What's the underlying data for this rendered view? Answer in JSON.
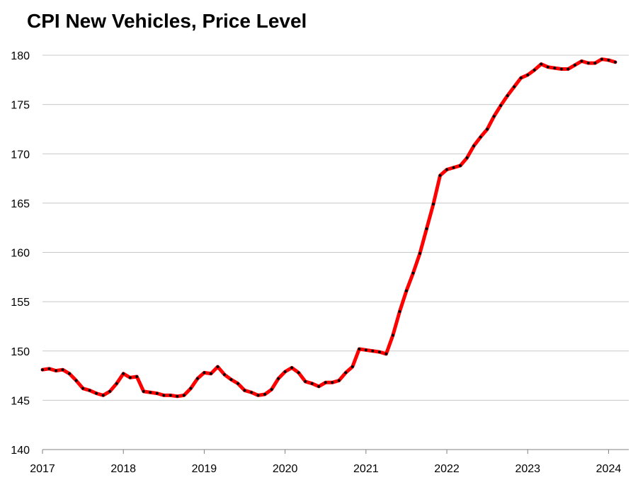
{
  "chart_data": {
    "type": "line",
    "title": "CPI New Vehicles, Price Level",
    "xlabel": "",
    "ylabel": "",
    "ylim": [
      140,
      180
    ],
    "xlim": [
      2017.0,
      2024.25
    ],
    "y_ticks": [
      140,
      145,
      150,
      155,
      160,
      165,
      170,
      175,
      180
    ],
    "x_ticks": [
      2017,
      2018,
      2019,
      2020,
      2021,
      2022,
      2023,
      2024
    ],
    "grid": "horizontal",
    "legend": "none",
    "series": [
      {
        "color": "#ff0000",
        "marker_color": "#000000",
        "x": [
          2017.0,
          2017.0833,
          2017.1667,
          2017.25,
          2017.3333,
          2017.4167,
          2017.5,
          2017.5833,
          2017.6667,
          2017.75,
          2017.8333,
          2017.9167,
          2018.0,
          2018.0833,
          2018.1667,
          2018.25,
          2018.3333,
          2018.4167,
          2018.5,
          2018.5833,
          2018.6667,
          2018.75,
          2018.8333,
          2018.9167,
          2019.0,
          2019.0833,
          2019.1667,
          2019.25,
          2019.3333,
          2019.4167,
          2019.5,
          2019.5833,
          2019.6667,
          2019.75,
          2019.8333,
          2019.9167,
          2020.0,
          2020.0833,
          2020.1667,
          2020.25,
          2020.3333,
          2020.4167,
          2020.5,
          2020.5833,
          2020.6667,
          2020.75,
          2020.8333,
          2020.9167,
          2021.0,
          2021.0833,
          2021.1667,
          2021.25,
          2021.3333,
          2021.4167,
          2021.5,
          2021.5833,
          2021.6667,
          2021.75,
          2021.8333,
          2021.9167,
          2022.0,
          2022.0833,
          2022.1667,
          2022.25,
          2022.3333,
          2022.4167,
          2022.5,
          2022.5833,
          2022.6667,
          2022.75,
          2022.8333,
          2022.9167,
          2023.0,
          2023.0833,
          2023.1667,
          2023.25,
          2023.3333,
          2023.4167,
          2023.5,
          2023.5833,
          2023.6667,
          2023.75,
          2023.8333,
          2023.9167,
          2024.0,
          2024.0833
        ],
        "values": [
          148.1,
          148.2,
          148.0,
          148.1,
          147.7,
          147.0,
          146.2,
          146.0,
          145.7,
          145.5,
          145.9,
          146.7,
          147.7,
          147.3,
          147.4,
          145.9,
          145.8,
          145.7,
          145.5,
          145.5,
          145.4,
          145.5,
          146.2,
          147.2,
          147.8,
          147.7,
          148.4,
          147.6,
          147.1,
          146.7,
          146.0,
          145.8,
          145.5,
          145.6,
          146.1,
          147.2,
          147.9,
          148.3,
          147.8,
          146.9,
          146.7,
          146.4,
          146.8,
          146.8,
          147.0,
          147.8,
          148.4,
          150.2,
          150.1,
          150.0,
          149.9,
          149.7,
          151.6,
          154.0,
          156.1,
          157.9,
          159.9,
          162.4,
          164.9,
          167.8,
          168.4,
          168.6,
          168.8,
          169.6,
          170.8,
          171.7,
          172.5,
          173.8,
          174.9,
          175.9,
          176.8,
          177.7,
          178.0,
          178.5,
          179.1,
          178.8,
          178.7,
          178.6,
          178.6,
          179.0,
          179.4,
          179.2,
          179.2,
          179.6,
          179.5,
          179.3
        ]
      }
    ]
  }
}
